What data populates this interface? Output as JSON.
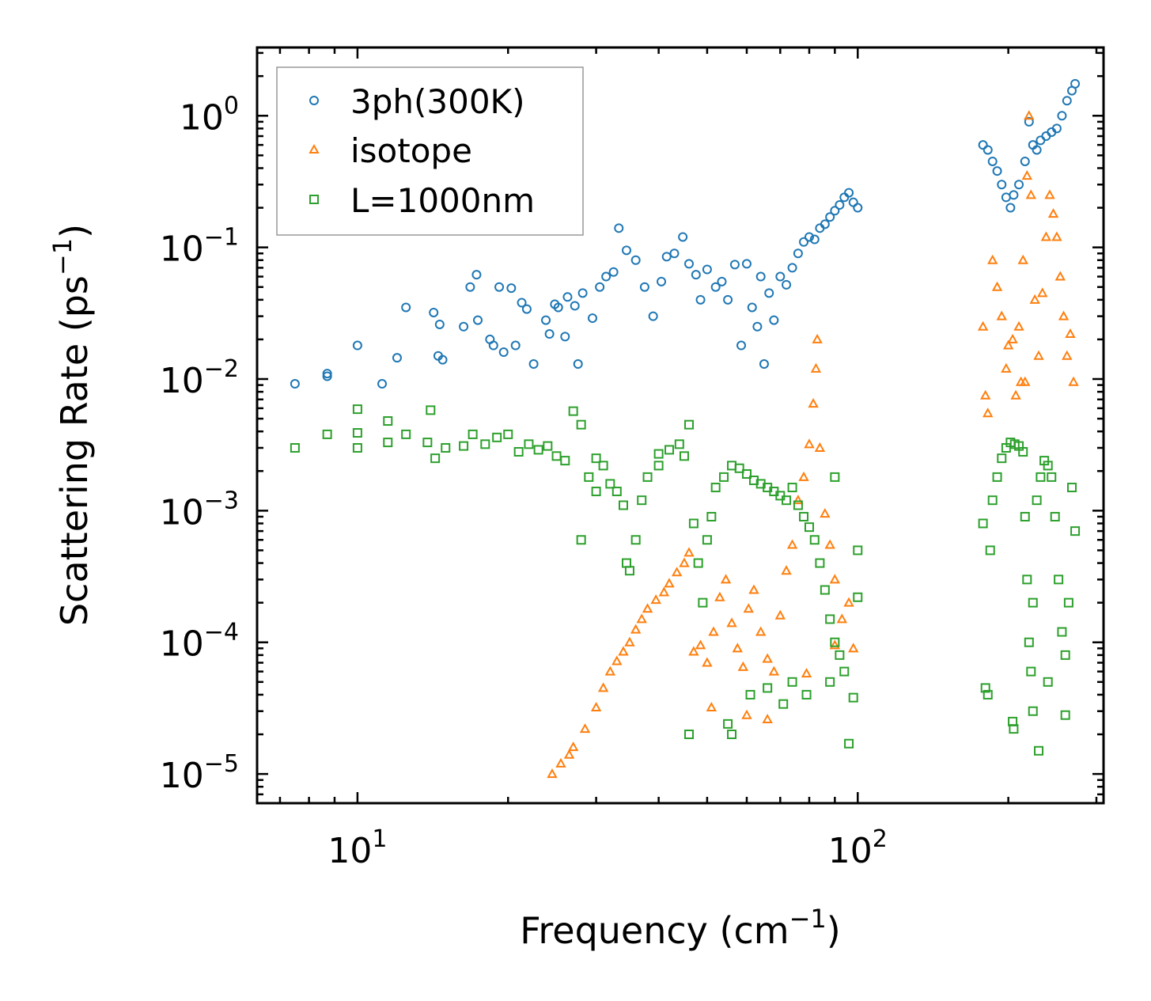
{
  "chart_data": {
    "type": "scatter",
    "title": "",
    "xlabel": "Frequency",
    "xlabel_unit_base": "cm",
    "xlabel_unit_exp": "−1",
    "ylabel": "Scattering Rate",
    "ylabel_unit_base": "ps",
    "ylabel_unit_exp": "−1",
    "xscale": "log",
    "yscale": "log",
    "xlim": [
      6.3,
      310
    ],
    "ylim": [
      6e-06,
      3.3
    ],
    "x_ticks": [
      {
        "base": "10",
        "exp": "1",
        "value": 10
      },
      {
        "base": "10",
        "exp": "2",
        "value": 100
      }
    ],
    "y_ticks": [
      {
        "base": "10",
        "exp": "0",
        "value": 1
      },
      {
        "base": "10",
        "exp": "−1",
        "value": 0.1
      },
      {
        "base": "10",
        "exp": "−2",
        "value": 0.01
      },
      {
        "base": "10",
        "exp": "−3",
        "value": 0.001
      },
      {
        "base": "10",
        "exp": "−4",
        "value": 0.0001
      },
      {
        "base": "10",
        "exp": "−5",
        "value": 1e-05
      }
    ],
    "legend_position": "top-left",
    "series": [
      {
        "name": "3ph(300K)",
        "marker": "circle",
        "color": "#1f77b4",
        "points": [
          [
            7.5,
            0.0092
          ],
          [
            8.7,
            0.0105
          ],
          [
            8.7,
            0.011
          ],
          [
            10,
            0.018
          ],
          [
            11.2,
            0.0092
          ],
          [
            12,
            0.0145
          ],
          [
            12.5,
            0.035
          ],
          [
            14.2,
            0.032
          ],
          [
            14.5,
            0.015
          ],
          [
            14.8,
            0.014
          ],
          [
            14.6,
            0.026
          ],
          [
            16.3,
            0.025
          ],
          [
            16.8,
            0.05
          ],
          [
            17.3,
            0.062
          ],
          [
            17.4,
            0.028
          ],
          [
            18.4,
            0.02
          ],
          [
            18.7,
            0.018
          ],
          [
            19.2,
            0.05
          ],
          [
            19.6,
            0.016
          ],
          [
            20.3,
            0.049
          ],
          [
            20.7,
            0.018
          ],
          [
            21.3,
            0.038
          ],
          [
            21.8,
            0.034
          ],
          [
            22.5,
            0.013
          ],
          [
            23.8,
            0.028
          ],
          [
            24.2,
            0.022
          ],
          [
            24.8,
            0.037
          ],
          [
            25.2,
            0.035
          ],
          [
            26,
            0.021
          ],
          [
            26.3,
            0.042
          ],
          [
            27.2,
            0.036
          ],
          [
            27.6,
            0.013
          ],
          [
            28.2,
            0.045
          ],
          [
            29.5,
            0.029
          ],
          [
            30.5,
            0.05
          ],
          [
            31.4,
            0.06
          ],
          [
            32.5,
            0.065
          ],
          [
            33.3,
            0.14
          ],
          [
            34.5,
            0.095
          ],
          [
            36,
            0.08
          ],
          [
            37.5,
            0.05
          ],
          [
            39,
            0.03
          ],
          [
            40.5,
            0.055
          ],
          [
            41.5,
            0.085
          ],
          [
            43,
            0.09
          ],
          [
            44.7,
            0.12
          ],
          [
            46,
            0.075
          ],
          [
            47.5,
            0.062
          ],
          [
            48.5,
            0.04
          ],
          [
            50,
            0.068
          ],
          [
            52,
            0.05
          ],
          [
            53.5,
            0.055
          ],
          [
            55,
            0.04
          ],
          [
            56.8,
            0.074
          ],
          [
            58.5,
            0.018
          ],
          [
            60,
            0.075
          ],
          [
            61.5,
            0.035
          ],
          [
            63,
            0.025
          ],
          [
            64,
            0.06
          ],
          [
            65,
            0.013
          ],
          [
            66.5,
            0.045
          ],
          [
            68,
            0.028
          ],
          [
            70,
            0.06
          ],
          [
            72,
            0.052
          ],
          [
            74,
            0.07
          ],
          [
            76,
            0.09
          ],
          [
            78,
            0.11
          ],
          [
            80,
            0.12
          ],
          [
            82,
            0.115
          ],
          [
            84,
            0.14
          ],
          [
            86,
            0.15
          ],
          [
            88,
            0.17
          ],
          [
            90,
            0.19
          ],
          [
            92,
            0.21
          ],
          [
            94,
            0.24
          ],
          [
            96,
            0.26
          ],
          [
            98,
            0.22
          ],
          [
            100,
            0.2
          ],
          [
            178,
            0.6
          ],
          [
            182,
            0.55
          ],
          [
            186,
            0.45
          ],
          [
            190,
            0.38
          ],
          [
            194,
            0.3
          ],
          [
            198,
            0.24
          ],
          [
            202,
            0.2
          ],
          [
            205,
            0.25
          ],
          [
            210,
            0.3
          ],
          [
            216,
            0.45
          ],
          [
            220,
            0.9
          ],
          [
            224,
            0.6
          ],
          [
            228,
            0.55
          ],
          [
            232,
            0.65
          ],
          [
            238,
            0.7
          ],
          [
            244,
            0.75
          ],
          [
            250,
            0.8
          ],
          [
            256,
            1.0
          ],
          [
            262,
            1.3
          ],
          [
            268,
            1.55
          ],
          [
            272,
            1.75
          ]
        ]
      },
      {
        "name": "isotope",
        "marker": "triangle",
        "color": "#ff7f0e",
        "points": [
          [
            24.5,
            1e-05
          ],
          [
            25.5,
            1.2e-05
          ],
          [
            26.5,
            1.4e-05
          ],
          [
            27,
            1.6e-05
          ],
          [
            28.5,
            2.2e-05
          ],
          [
            30,
            3.2e-05
          ],
          [
            31,
            4.5e-05
          ],
          [
            32,
            6e-05
          ],
          [
            33,
            7.2e-05
          ],
          [
            34,
            8.5e-05
          ],
          [
            35,
            0.0001
          ],
          [
            36,
            0.000125
          ],
          [
            37,
            0.00015
          ],
          [
            38,
            0.00018
          ],
          [
            39.5,
            0.00021
          ],
          [
            41,
            0.00024
          ],
          [
            42,
            0.00028
          ],
          [
            43.5,
            0.00034
          ],
          [
            45,
            0.0004
          ],
          [
            46,
            0.00048
          ],
          [
            47,
            8.5e-05
          ],
          [
            48.5,
            9.5e-05
          ],
          [
            50,
            7e-05
          ],
          [
            51.5,
            0.00012
          ],
          [
            53,
            0.00022
          ],
          [
            54.5,
            0.0003
          ],
          [
            56,
            0.00014
          ],
          [
            57.5,
            9e-05
          ],
          [
            59,
            6.5e-05
          ],
          [
            60.5,
            0.00018
          ],
          [
            62,
            0.00025
          ],
          [
            64,
            0.00012
          ],
          [
            66,
            7.5e-05
          ],
          [
            68,
            6e-05
          ],
          [
            70,
            0.00016
          ],
          [
            72,
            0.00035
          ],
          [
            74,
            0.00055
          ],
          [
            76,
            0.0012
          ],
          [
            78,
            0.0018
          ],
          [
            80,
            0.0032
          ],
          [
            81.5,
            0.0065
          ],
          [
            82.5,
            0.012
          ],
          [
            83,
            0.02
          ],
          [
            84,
            0.003
          ],
          [
            86,
            0.00095
          ],
          [
            88,
            0.00055
          ],
          [
            90,
            0.0003
          ],
          [
            93,
            0.00015
          ],
          [
            96,
            0.0002
          ],
          [
            98,
            9e-05
          ],
          [
            51,
            3.2e-05
          ],
          [
            60,
            2.8e-05
          ],
          [
            66,
            2.6e-05
          ],
          [
            79,
            5.8e-05
          ],
          [
            90,
            9.5e-05
          ],
          [
            178,
            0.025
          ],
          [
            180,
            0.0075
          ],
          [
            182,
            0.0055
          ],
          [
            186,
            0.08
          ],
          [
            190,
            0.05
          ],
          [
            194,
            0.03
          ],
          [
            198,
            0.012
          ],
          [
            200,
            0.018
          ],
          [
            204,
            0.02
          ],
          [
            207,
            0.0075
          ],
          [
            210,
            0.025
          ],
          [
            214,
            0.08
          ],
          [
            218,
            0.35
          ],
          [
            220,
            1.0
          ],
          [
            222,
            0.25
          ],
          [
            226,
            0.04
          ],
          [
            230,
            0.015
          ],
          [
            234,
            0.045
          ],
          [
            238,
            0.12
          ],
          [
            242,
            0.25
          ],
          [
            246,
            0.18
          ],
          [
            250,
            0.12
          ],
          [
            254,
            0.06
          ],
          [
            258,
            0.03
          ],
          [
            262,
            0.015
          ],
          [
            266,
            0.022
          ],
          [
            270,
            0.0095
          ],
          [
            212,
            0.0095
          ],
          [
            216,
            0.0095
          ]
        ]
      },
      {
        "name": "L=1000nm",
        "marker": "square",
        "color": "#2ca02c",
        "points": [
          [
            7.5,
            0.003
          ],
          [
            8.7,
            0.0038
          ],
          [
            10,
            0.0039
          ],
          [
            10,
            0.003
          ],
          [
            10,
            0.0059
          ],
          [
            11.5,
            0.0033
          ],
          [
            11.5,
            0.0048
          ],
          [
            12.5,
            0.0038
          ],
          [
            13.8,
            0.0033
          ],
          [
            14,
            0.0058
          ],
          [
            14.3,
            0.0025
          ],
          [
            15,
            0.003
          ],
          [
            16.3,
            0.0031
          ],
          [
            17,
            0.0038
          ],
          [
            18,
            0.0032
          ],
          [
            19,
            0.0036
          ],
          [
            20,
            0.0038
          ],
          [
            21,
            0.0028
          ],
          [
            22,
            0.0032
          ],
          [
            23,
            0.0029
          ],
          [
            24,
            0.0031
          ],
          [
            25,
            0.0026
          ],
          [
            26,
            0.0024
          ],
          [
            27,
            0.0057
          ],
          [
            28,
            0.0045
          ],
          [
            29,
            0.0018
          ],
          [
            30,
            0.0025
          ],
          [
            31,
            0.0022
          ],
          [
            32,
            0.0016
          ],
          [
            33,
            0.0014
          ],
          [
            34,
            0.0011
          ],
          [
            34.5,
            0.0004
          ],
          [
            35,
            0.00035
          ],
          [
            36,
            0.0006
          ],
          [
            37,
            0.0012
          ],
          [
            38,
            0.0018
          ],
          [
            40,
            0.0022
          ],
          [
            42,
            0.0029
          ],
          [
            44,
            0.0032
          ],
          [
            46,
            0.0045
          ],
          [
            47,
            0.0008
          ],
          [
            48,
            0.0004
          ],
          [
            49,
            0.0002
          ],
          [
            50,
            0.0006
          ],
          [
            52,
            0.0015
          ],
          [
            54,
            0.0018
          ],
          [
            56,
            0.0022
          ],
          [
            58,
            0.0021
          ],
          [
            60,
            0.0019
          ],
          [
            62,
            0.0017
          ],
          [
            64,
            0.0016
          ],
          [
            66,
            0.0015
          ],
          [
            68,
            0.0014
          ],
          [
            70,
            0.0013
          ],
          [
            72,
            0.0012
          ],
          [
            74,
            0.0015
          ],
          [
            76,
            0.0011
          ],
          [
            78,
            0.0009
          ],
          [
            80,
            0.00075
          ],
          [
            82,
            0.0006
          ],
          [
            84,
            0.0004
          ],
          [
            86,
            0.00025
          ],
          [
            88,
            0.00015
          ],
          [
            90,
            0.0001
          ],
          [
            92,
            8e-05
          ],
          [
            94,
            6e-05
          ],
          [
            96,
            1.7e-05
          ],
          [
            98,
            3.8e-05
          ],
          [
            100,
            0.0005
          ],
          [
            100,
            0.00022
          ],
          [
            45,
            0.0026
          ],
          [
            51,
            0.0009
          ],
          [
            55,
            2.4e-05
          ],
          [
            61,
            4e-05
          ],
          [
            66,
            4.5e-05
          ],
          [
            71,
            3.4e-05
          ],
          [
            74,
            5e-05
          ],
          [
            79,
            4e-05
          ],
          [
            88,
            5e-05
          ],
          [
            46,
            2e-05
          ],
          [
            56,
            2e-05
          ],
          [
            28,
            0.0006
          ],
          [
            30,
            0.0014
          ],
          [
            40,
            0.0027
          ],
          [
            90,
            0.0018
          ],
          [
            178,
            0.0008
          ],
          [
            180,
            4.5e-05
          ],
          [
            182,
            4e-05
          ],
          [
            184,
            0.0005
          ],
          [
            186,
            0.0012
          ],
          [
            190,
            0.0018
          ],
          [
            194,
            0.0025
          ],
          [
            198,
            0.003
          ],
          [
            202,
            0.0033
          ],
          [
            206,
            0.0032
          ],
          [
            210,
            0.0031
          ],
          [
            214,
            0.0028
          ],
          [
            216,
            0.0009
          ],
          [
            218,
            0.0003
          ],
          [
            220,
            0.0001
          ],
          [
            222,
            6e-05
          ],
          [
            224,
            0.0002
          ],
          [
            228,
            0.0012
          ],
          [
            232,
            0.0018
          ],
          [
            236,
            0.0024
          ],
          [
            240,
            0.0022
          ],
          [
            244,
            0.0018
          ],
          [
            248,
            0.0009
          ],
          [
            252,
            0.0003
          ],
          [
            256,
            0.00012
          ],
          [
            260,
            8e-05
          ],
          [
            264,
            0.0002
          ],
          [
            268,
            0.0015
          ],
          [
            272,
            0.0007
          ],
          [
            204,
            2.5e-05
          ],
          [
            224,
            3e-05
          ],
          [
            230,
            1.5e-05
          ],
          [
            205,
            2.2e-05
          ],
          [
            260,
            2.8e-05
          ],
          [
            240,
            5e-05
          ]
        ]
      }
    ]
  }
}
